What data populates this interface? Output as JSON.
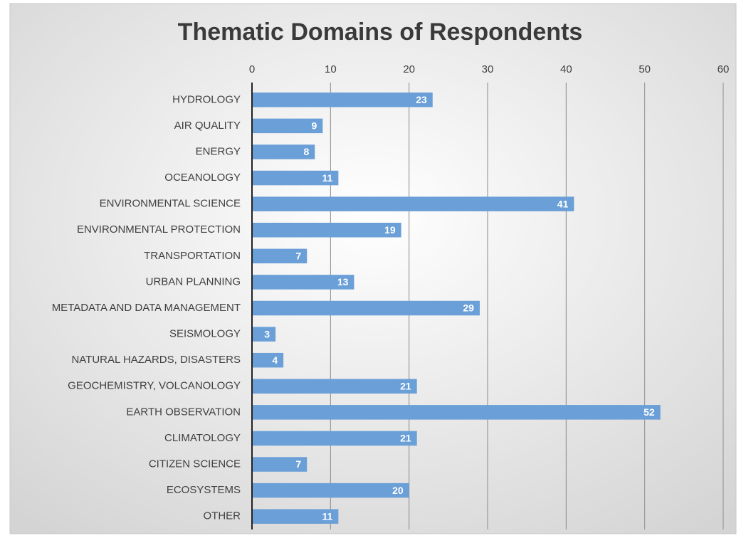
{
  "chart_data": {
    "type": "bar",
    "orientation": "horizontal",
    "title": "Thematic Domains of Respondents",
    "categories": [
      "HYDROLOGY",
      "AIR QUALITY",
      "ENERGY",
      "OCEANOLOGY",
      "ENVIRONMENTAL SCIENCE",
      "ENVIRONMENTAL PROTECTION",
      "TRANSPORTATION",
      "URBAN PLANNING",
      "METADATA AND DATA MANAGEMENT",
      "SEISMOLOGY",
      "NATURAL HAZARDS, DISASTERS",
      "GEOCHEMISTRY, VOLCANOLOGY",
      "EARTH OBSERVATION",
      "CLIMATOLOGY",
      "CITIZEN SCIENCE",
      "ECOSYSTEMS",
      "OTHER"
    ],
    "values": [
      23,
      9,
      8,
      11,
      41,
      19,
      7,
      13,
      29,
      3,
      4,
      21,
      52,
      21,
      7,
      20,
      11
    ],
    "color": "#6a9fd8",
    "xlim": [
      0,
      60
    ],
    "xticks": [
      0,
      10,
      20,
      30,
      40,
      50,
      60
    ],
    "grid": true
  }
}
